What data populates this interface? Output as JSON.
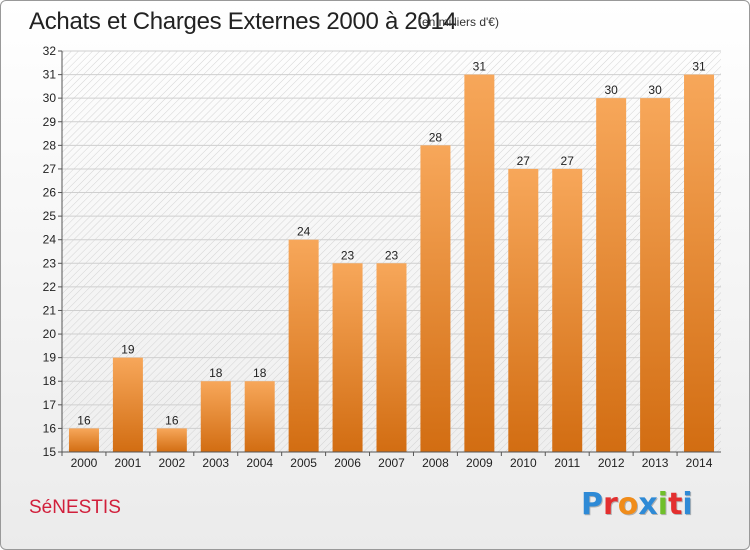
{
  "header": {
    "title": "Achats et Charges Externes 2000 à 2014",
    "subtitle": "(en milliers d'€)"
  },
  "footer": {
    "commune": "SéNESTIS",
    "logo": "Proxiti"
  },
  "colors": {
    "bar_light": "#f7a75a",
    "bar_dark": "#d26d12",
    "logo_letters": [
      "#2e8ad6",
      "#e32f2f",
      "#f08c1a",
      "#2e8ad6",
      "#6fbf2a",
      "#e32f2f",
      "#2e8ad6"
    ]
  },
  "chart_data": {
    "type": "bar",
    "categories": [
      "2000",
      "2001",
      "2002",
      "2003",
      "2004",
      "2005",
      "2006",
      "2007",
      "2008",
      "2009",
      "2010",
      "2011",
      "2012",
      "2013",
      "2014"
    ],
    "values": [
      16,
      19,
      16,
      18,
      18,
      24,
      23,
      23,
      28,
      31,
      27,
      27,
      30,
      30,
      31
    ],
    "title": "Achats et Charges Externes 2000 à 2014",
    "subtitle": "(en milliers d'€)",
    "xlabel": "",
    "ylabel": "",
    "ylim": [
      15,
      32
    ],
    "yticks": [
      15,
      16,
      17,
      18,
      19,
      20,
      21,
      22,
      23,
      24,
      25,
      26,
      27,
      28,
      29,
      30,
      31,
      32
    ],
    "grid": true,
    "data_labels": true,
    "legend": "none"
  }
}
